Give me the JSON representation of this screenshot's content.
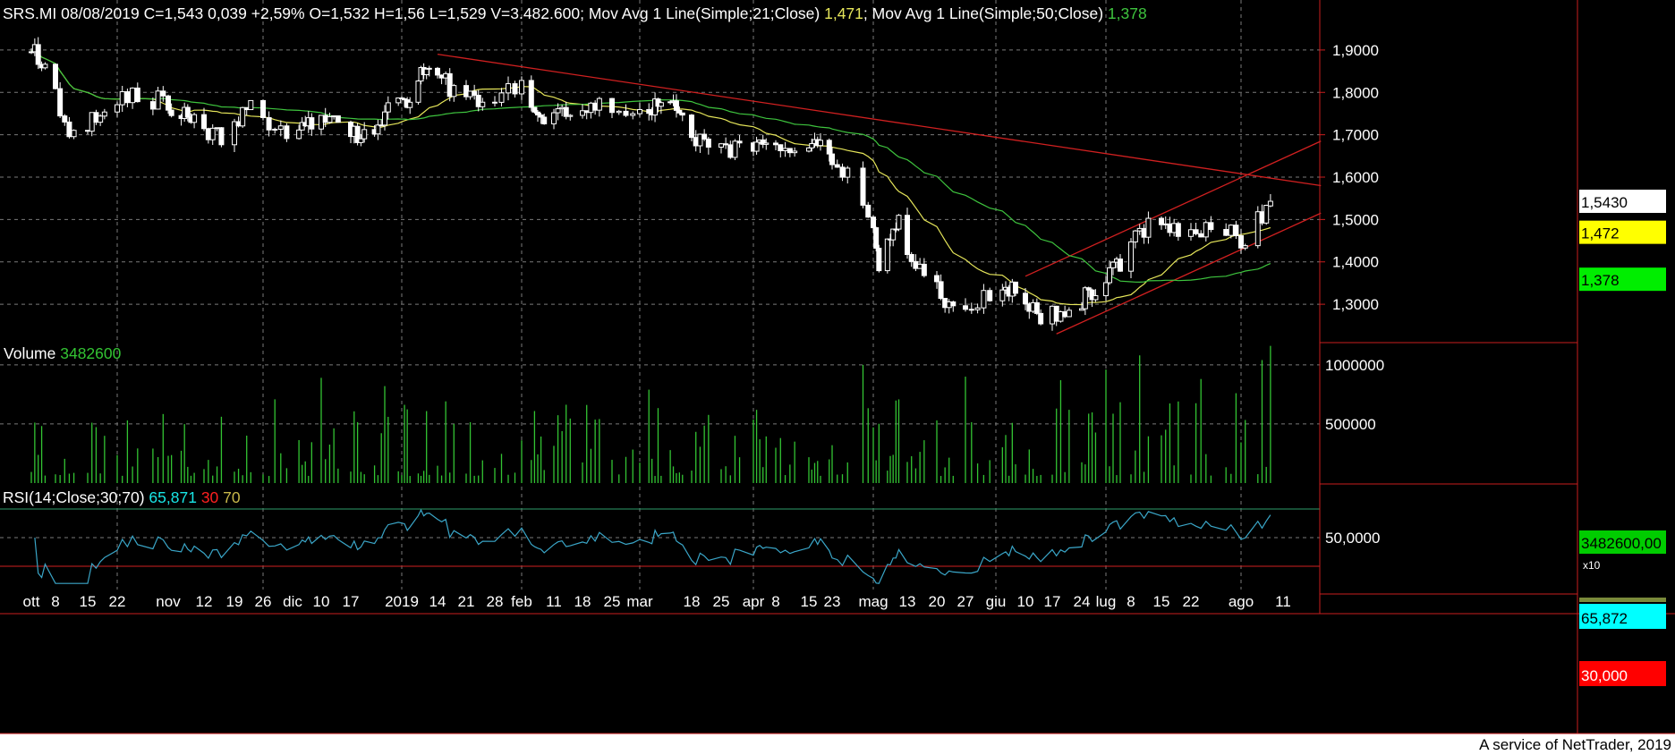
{
  "colors": {
    "background": "#000000",
    "footer_background": "#ffffff",
    "grid": "#7a7a7a",
    "text": "#ffffff",
    "candle_up": "#ffffff",
    "candle_down": "#ffffff",
    "ma21": "#e6e65a",
    "ma50": "#3ec43e",
    "trendline": "#d02020",
    "volume": "#33c433",
    "rsi_line": "#3aa6c8",
    "rsi_upper_line": "#2e9d6a",
    "rsi_lower_line": "#d02020",
    "rsi_value": "#19e6e6",
    "rsi_30": "#ff2020",
    "rsi_70": "#c8b84a",
    "price_badge": "#ffffff",
    "ma21_badge": "#ffff00",
    "ma50_badge": "#00ee00",
    "volume_badge": "#00cc00",
    "rsi_badge": "#00ffff",
    "rsi30_badge": "#ff0000",
    "frame": "#c81e1e"
  },
  "header": {
    "quote": "SRS.MI 08/08/2019 C=1,543 0,039 +2,59% O=1,532 H=1,56 L=1,529 V=3.482.600",
    "ma21_label": "; Mov Avg 1 Line(Simple;21;Close) ",
    "ma21_value": "1,471",
    "ma50_label": "; Mov Avg 1 Line(Simple;50;Close) ",
    "ma50_value": "1,378"
  },
  "volume_header": {
    "label": "Volume ",
    "value": "3482600"
  },
  "rsi_header": {
    "label": "RSI(14;Close;30;70) ",
    "value": "65,871",
    "low": " 30",
    "high": " 70"
  },
  "badges": {
    "price": "1,5430",
    "ma21": "1,472",
    "ma50": "1,378",
    "volume": "3482600,00",
    "volume_multiplier": "x10",
    "rsi": "65,872",
    "rsi_low": "30,000"
  },
  "footer": "A service of NetTrader, 2019",
  "chart_data": {
    "type": "candlestick",
    "symbol": "SRS.MI",
    "date_range": [
      "2018-10-01",
      "2019-08-08"
    ],
    "price_axis": {
      "ticks": [
        1.3,
        1.4,
        1.5,
        1.6,
        1.7,
        1.8,
        1.9
      ],
      "tick_labels": [
        "1,3000",
        "1,4000",
        "1,5000",
        "1,6000",
        "1,7000",
        "1,8000",
        "1,9000"
      ],
      "range": [
        1.22,
        1.98
      ]
    },
    "x_axis": {
      "labels": [
        "ott",
        "8",
        "15",
        "22",
        "nov",
        "12",
        "19",
        "26",
        "dic",
        "10",
        "17",
        "2019",
        "14",
        "21",
        "28",
        "feb",
        "11",
        "18",
        "25",
        "mar",
        "18",
        "25",
        "apr",
        "8",
        "15",
        "23",
        "mag",
        "13",
        "20",
        "27",
        "giu",
        "10",
        "17",
        "24",
        "lug",
        "8",
        "15",
        "22",
        "ago",
        "11"
      ],
      "label_dates": [
        "2018-10-01",
        "2018-10-08",
        "2018-10-15",
        "2018-10-22",
        "2018-11-01",
        "2018-11-12",
        "2018-11-19",
        "2018-11-26",
        "2018-12-01",
        "2018-12-10",
        "2018-12-17",
        "2019-01-01",
        "2019-01-14",
        "2019-01-21",
        "2019-01-28",
        "2019-02-01",
        "2019-02-11",
        "2019-02-18",
        "2019-02-25",
        "2019-03-01",
        "2019-03-18",
        "2019-03-25",
        "2019-04-01",
        "2019-04-08",
        "2019-04-15",
        "2019-04-23",
        "2019-05-01",
        "2019-05-13",
        "2019-05-20",
        "2019-05-27",
        "2019-06-01",
        "2019-06-10",
        "2019-06-17",
        "2019-06-24",
        "2019-07-01",
        "2019-07-08",
        "2019-07-15",
        "2019-07-22",
        "2019-08-01",
        "2019-08-11"
      ]
    },
    "close_series": {
      "dates": [
        "2018-10-01",
        "2018-10-05",
        "2018-10-12",
        "2018-10-19",
        "2018-10-26",
        "2018-11-02",
        "2018-11-09",
        "2018-11-16",
        "2018-11-23",
        "2018-11-30",
        "2018-12-07",
        "2018-12-14",
        "2018-12-21",
        "2018-12-28",
        "2019-01-04",
        "2019-01-11",
        "2019-01-18",
        "2019-01-25",
        "2019-02-01",
        "2019-02-08",
        "2019-02-15",
        "2019-02-22",
        "2019-03-01",
        "2019-03-08",
        "2019-03-15",
        "2019-03-22",
        "2019-03-29",
        "2019-04-05",
        "2019-04-12",
        "2019-04-19",
        "2019-04-26",
        "2019-05-03",
        "2019-05-10",
        "2019-05-17",
        "2019-05-24",
        "2019-05-31",
        "2019-06-07",
        "2019-06-14",
        "2019-06-21",
        "2019-06-28",
        "2019-07-05",
        "2019-07-12",
        "2019-07-19",
        "2019-07-26",
        "2019-08-02",
        "2019-08-08"
      ],
      "close": [
        1.92,
        1.86,
        1.69,
        1.76,
        1.79,
        1.77,
        1.73,
        1.69,
        1.76,
        1.69,
        1.73,
        1.74,
        1.69,
        1.76,
        1.79,
        1.87,
        1.8,
        1.78,
        1.82,
        1.73,
        1.76,
        1.78,
        1.75,
        1.77,
        1.75,
        1.66,
        1.66,
        1.68,
        1.65,
        1.69,
        1.6,
        1.4,
        1.49,
        1.36,
        1.29,
        1.32,
        1.33,
        1.26,
        1.29,
        1.34,
        1.4,
        1.49,
        1.48,
        1.48,
        1.45,
        1.543
      ]
    },
    "last_candle": {
      "date": "2019-08-08",
      "open": 1.532,
      "high": 1.56,
      "low": 1.529,
      "close": 1.543,
      "change": 0.039,
      "change_pct": 2.59,
      "volume": 3482600
    },
    "moving_averages": [
      {
        "name": "Mov Avg 1 Line(Simple;21;Close)",
        "last": 1.471
      },
      {
        "name": "Mov Avg 1 Line(Simple;50;Close)",
        "last": 1.378
      }
    ],
    "trendlines": [
      {
        "kind": "resistance",
        "from": [
          "2019-01-14",
          1.89
        ],
        "to": [
          "2019-08-20",
          1.58
        ]
      },
      {
        "kind": "channel-upper",
        "from": [
          "2019-06-10",
          1.366
        ],
        "to": [
          "2019-08-20",
          1.685
        ]
      },
      {
        "kind": "channel-lower",
        "from": [
          "2019-06-18",
          1.23
        ],
        "to": [
          "2019-08-20",
          1.515
        ]
      }
    ],
    "volume_axis": {
      "ticks": [
        500000,
        1000000
      ],
      "tick_labels": [
        "500000",
        "1000000"
      ],
      "range": [
        0,
        1150000
      ]
    },
    "rsi_axis": {
      "ticks": [
        50
      ],
      "tick_labels": [
        "50,0000"
      ],
      "upper_band": 70,
      "lower_band": 30,
      "range": [
        15,
        85
      ]
    },
    "rsi_last": 65.871,
    "grid": true
  }
}
